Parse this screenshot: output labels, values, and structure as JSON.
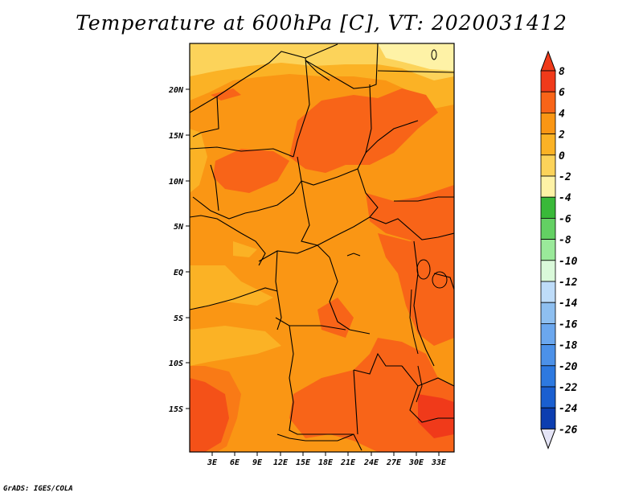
{
  "title": "Temperature at 600hPa [C], VT: 2020031412",
  "credit": "GrADS: IGES/COLA",
  "map": {
    "lat_labels": [
      "20N",
      "15N",
      "10N",
      "5N",
      "EQ",
      "5S",
      "10S",
      "15S"
    ],
    "lon_labels": [
      "3E",
      "6E",
      "9E",
      "12E",
      "15E",
      "18E",
      "21E",
      "24E",
      "27E",
      "30E",
      "33E"
    ]
  },
  "colorbar": {
    "labels": [
      "8",
      "6",
      "4",
      "2",
      "0",
      "-2",
      "-4",
      "-6",
      "-8",
      "-10",
      "-12",
      "-14",
      "-16",
      "-18",
      "-20",
      "-22",
      "-24",
      "-26"
    ],
    "colors": [
      "#f03a1a",
      "#f86418",
      "#fa9614",
      "#fbb225",
      "#fcd35a",
      "#fef2a6",
      "#39b939",
      "#63d063",
      "#9ae99a",
      "#daf9da",
      "#bedcf9",
      "#8ebff0",
      "#6ba7ee",
      "#4c91e8",
      "#2d79e0",
      "#1a5fd0",
      "#0c3eb0",
      "#06206e"
    ],
    "under_color": "#e4e4f6"
  },
  "colors": {
    "warm_0_2": "#fbb225",
    "warm_2_4": "#fa9614",
    "warm_4_6": "#f86418",
    "warm_6_8": "#f03a1a",
    "cool_m2_0": "#fcd35a",
    "cool_m4_m2": "#fef2a6"
  }
}
